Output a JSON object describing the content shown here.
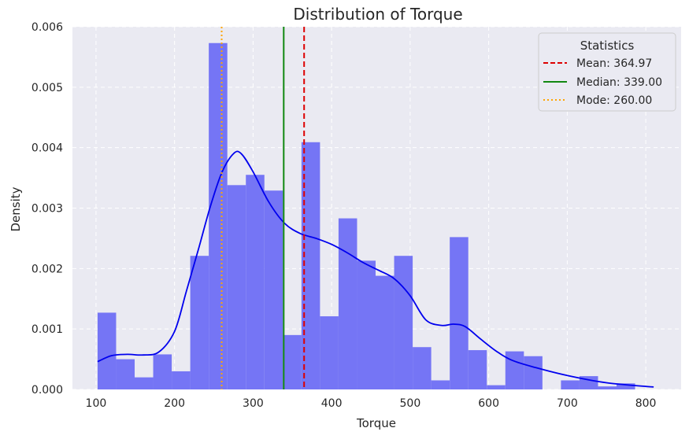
{
  "chart_data": {
    "type": "histogram",
    "title": "Distribution of Torque",
    "xlabel": "Torque",
    "ylabel": "Density",
    "xlim": [
      70,
      845
    ],
    "ylim": [
      0,
      0.006
    ],
    "x_ticks": [
      100,
      200,
      300,
      400,
      500,
      600,
      700,
      800
    ],
    "y_ticks": [
      0.0,
      0.001,
      0.002,
      0.003,
      0.004,
      0.005,
      0.006
    ],
    "x_tick_labels": [
      "100",
      "200",
      "300",
      "400",
      "500",
      "600",
      "700",
      "800"
    ],
    "y_tick_labels": [
      "0.000",
      "0.001",
      "0.002",
      "0.003",
      "0.004",
      "0.005",
      "0.006"
    ],
    "grid": true,
    "bin_start": 102,
    "bin_width": 23.6,
    "densities": [
      0.00127,
      0.0005,
      0.0002,
      0.00058,
      0.0003,
      0.00221,
      0.00573,
      0.00338,
      0.00355,
      0.00329,
      0.0009,
      0.00409,
      0.00121,
      0.00283,
      0.00213,
      0.00188,
      0.00221,
      0.0007,
      0.00015,
      0.00252,
      0.00065,
      7e-05,
      0.00063,
      0.00055,
      0,
      0.00015,
      0.00022,
      5e-05,
      0.0001
    ],
    "kde": {
      "x": [
        102,
        120,
        140,
        160,
        180,
        200,
        215,
        230,
        245,
        260,
        275,
        285,
        300,
        320,
        340,
        360,
        380,
        400,
        420,
        440,
        460,
        480,
        500,
        520,
        540,
        555,
        570,
        590,
        610,
        630,
        660,
        700,
        750,
        810
      ],
      "y": [
        0.00046,
        0.00056,
        0.00058,
        0.00057,
        0.00062,
        0.00096,
        0.00162,
        0.0023,
        0.003,
        0.00358,
        0.0039,
        0.0039,
        0.0036,
        0.0031,
        0.00275,
        0.00258,
        0.0025,
        0.0024,
        0.00226,
        0.0021,
        0.00197,
        0.00183,
        0.00155,
        0.00115,
        0.00106,
        0.00108,
        0.00104,
        0.00083,
        0.00063,
        0.00048,
        0.00036,
        0.00023,
        0.00011,
        4e-05
      ]
    },
    "colors": {
      "bars": "#7575f5",
      "kde": "#0000ee",
      "mean": "#dd0000",
      "median": "#118811",
      "mode": "#ffa500",
      "background": "#eaeaf2",
      "grid": "#ffffff"
    },
    "vlines": [
      {
        "key": "mean",
        "value": 364.97,
        "style": "dashed"
      },
      {
        "key": "median",
        "value": 339.0,
        "style": "solid"
      },
      {
        "key": "mode",
        "value": 260.0,
        "style": "dotted"
      }
    ],
    "legend": {
      "title": "Statistics",
      "position": "top-right",
      "entries": [
        "Mean: 364.97",
        "Median: 339.00",
        "Mode: 260.00"
      ]
    }
  }
}
